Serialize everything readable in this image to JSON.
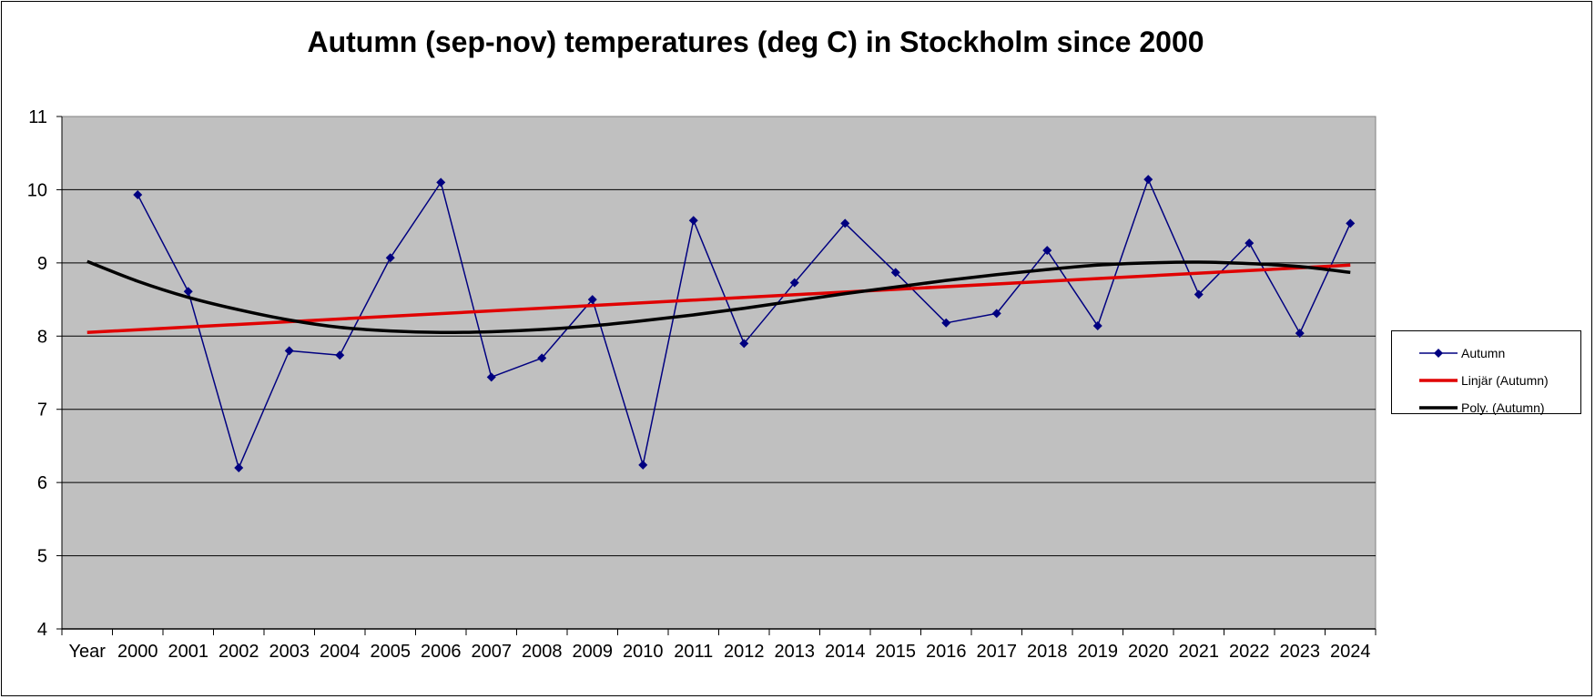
{
  "chart_data": {
    "type": "line",
    "title": "Autumn (sep-nov) temperatures (deg C) in Stockholm since 2000",
    "categories": [
      "Year",
      "2000",
      "2001",
      "2002",
      "2003",
      "2004",
      "2005",
      "2006",
      "2007",
      "2008",
      "2009",
      "2010",
      "2011",
      "2012",
      "2013",
      "2014",
      "2015",
      "2016",
      "2017",
      "2018",
      "2019",
      "2020",
      "2021",
      "2022",
      "2023",
      "2024"
    ],
    "series": [
      {
        "name": "Autumn",
        "color": "#000080",
        "marker": "diamond",
        "x": [
          "2000",
          "2001",
          "2002",
          "2003",
          "2004",
          "2005",
          "2006",
          "2007",
          "2008",
          "2009",
          "2010",
          "2011",
          "2012",
          "2013",
          "2014",
          "2015",
          "2016",
          "2017",
          "2018",
          "2019",
          "2020",
          "2021",
          "2022",
          "2023",
          "2024"
        ],
        "values": [
          9.93,
          8.61,
          6.2,
          7.8,
          7.74,
          9.07,
          10.1,
          7.44,
          7.7,
          8.5,
          6.24,
          9.58,
          7.9,
          8.73,
          9.54,
          8.87,
          8.18,
          8.31,
          9.17,
          8.14,
          10.14,
          8.57,
          9.27,
          8.04,
          9.54
        ]
      },
      {
        "name": "Linjär (Autumn)",
        "color": "#e00000",
        "fit": "linear",
        "x": [
          "Year",
          "2024"
        ],
        "values": [
          8.05,
          8.97
        ]
      },
      {
        "name": "Poly. (Autumn)",
        "color": "#000000",
        "fit": "polynomial",
        "x": [
          "Year",
          "2000",
          "2001",
          "2002",
          "2003",
          "2004",
          "2005",
          "2006",
          "2007",
          "2008",
          "2009",
          "2010",
          "2011",
          "2012",
          "2013",
          "2014",
          "2015",
          "2016",
          "2017",
          "2018",
          "2019",
          "2020",
          "2021",
          "2022",
          "2023",
          "2024"
        ],
        "values": [
          9.02,
          8.75,
          8.53,
          8.36,
          8.22,
          8.12,
          8.07,
          8.05,
          8.06,
          8.09,
          8.14,
          8.21,
          8.29,
          8.38,
          8.48,
          8.58,
          8.67,
          8.76,
          8.84,
          8.91,
          8.97,
          9.0,
          9.01,
          8.99,
          8.95,
          8.87
        ]
      }
    ],
    "ylim": [
      4,
      11
    ],
    "yticks": [
      "4",
      "5",
      "6",
      "7",
      "8",
      "9",
      "10",
      "11"
    ],
    "grid": true,
    "plot_background": "#c0c0c0",
    "legend_position": "right"
  }
}
